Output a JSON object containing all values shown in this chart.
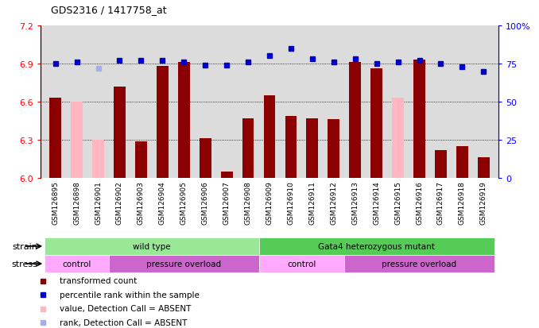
{
  "title": "GDS2316 / 1417758_at",
  "samples": [
    "GSM126895",
    "GSM126898",
    "GSM126901",
    "GSM126902",
    "GSM126903",
    "GSM126904",
    "GSM126905",
    "GSM126906",
    "GSM126907",
    "GSM126908",
    "GSM126909",
    "GSM126910",
    "GSM126911",
    "GSM126912",
    "GSM126913",
    "GSM126914",
    "GSM126915",
    "GSM126916",
    "GSM126917",
    "GSM126918",
    "GSM126919"
  ],
  "bar_values": [
    6.63,
    null,
    null,
    6.72,
    6.29,
    6.88,
    6.91,
    6.31,
    6.05,
    6.47,
    6.65,
    6.49,
    6.47,
    6.46,
    6.91,
    6.86,
    null,
    6.93,
    6.22,
    6.25,
    6.16
  ],
  "absent_bar_values": [
    null,
    6.6,
    6.3,
    null,
    null,
    null,
    null,
    null,
    null,
    null,
    null,
    null,
    null,
    null,
    null,
    null,
    6.63,
    null,
    null,
    null,
    null
  ],
  "rank_values": [
    75,
    76,
    null,
    77,
    77,
    77,
    76,
    74,
    74,
    76,
    80,
    85,
    78,
    76,
    78,
    75,
    76,
    77,
    75,
    73,
    70
  ],
  "absent_rank_values": [
    null,
    null,
    72,
    null,
    null,
    null,
    null,
    null,
    null,
    null,
    null,
    null,
    null,
    null,
    null,
    null,
    null,
    null,
    null,
    null,
    null
  ],
  "ylim_left": [
    6.0,
    7.2
  ],
  "ylim_right": [
    0,
    100
  ],
  "yticks_left": [
    6.0,
    6.3,
    6.6,
    6.9,
    7.2
  ],
  "yticks_right": [
    0,
    25,
    50,
    75,
    100
  ],
  "bar_color": "#8B0000",
  "absent_bar_color": "#FFB6C1",
  "rank_color": "#0000CC",
  "absent_rank_color": "#AAAAEE",
  "grid_dotted_values": [
    6.3,
    6.6,
    6.9
  ],
  "plot_bg": "#DCDCDC",
  "strain_labels": [
    {
      "label": "wild type",
      "start": 0,
      "end": 9,
      "color": "#98E898"
    },
    {
      "label": "Gata4 heterozygous mutant",
      "start": 10,
      "end": 20,
      "color": "#55CC55"
    }
  ],
  "stress_labels": [
    {
      "label": "control",
      "start": 0,
      "end": 2,
      "color": "#FFAAFF"
    },
    {
      "label": "pressure overload",
      "start": 3,
      "end": 9,
      "color": "#CC66CC"
    },
    {
      "label": "control",
      "start": 10,
      "end": 13,
      "color": "#FFAAFF"
    },
    {
      "label": "pressure overload",
      "start": 14,
      "end": 20,
      "color": "#CC66CC"
    }
  ],
  "legend_items": [
    {
      "label": "transformed count",
      "color": "#8B0000"
    },
    {
      "label": "percentile rank within the sample",
      "color": "#0000CC"
    },
    {
      "label": "value, Detection Call = ABSENT",
      "color": "#FFB6C1"
    },
    {
      "label": "rank, Detection Call = ABSENT",
      "color": "#AAAAEE"
    }
  ],
  "bar_width": 0.55,
  "rank_marker_size": 5
}
